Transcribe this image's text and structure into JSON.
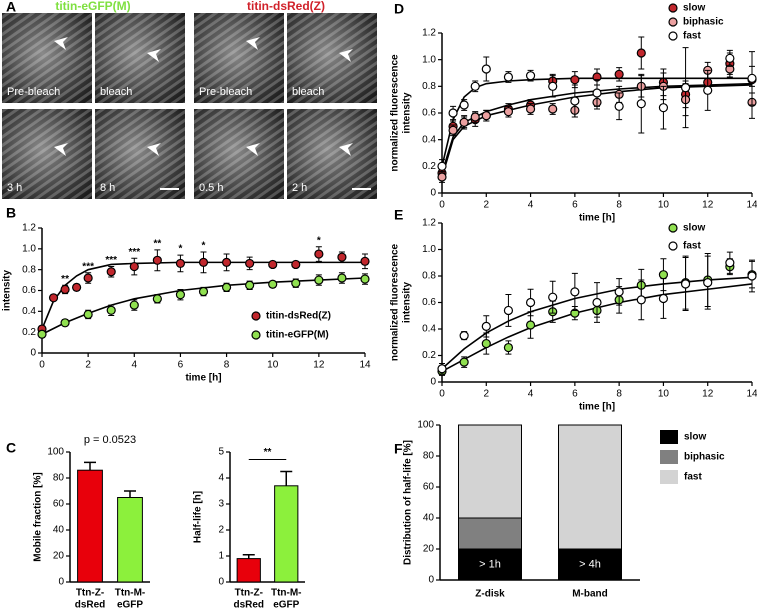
{
  "panel_labels": [
    "A",
    "B",
    "C",
    "D",
    "E",
    "F"
  ],
  "images": {
    "left_title": "titin-eGFP(M)",
    "right_title": "titin-dsRed(Z)",
    "tile_labels": [
      "Pre-bleach",
      "bleach",
      "Pre-bleach",
      "bleach",
      "3 h",
      "8 h",
      "0.5 h",
      "2 h"
    ]
  },
  "chart_data": [
    {
      "type": "scatter",
      "xlabel": "time [h]",
      "ylabel": [
        "normalized fluorescence",
        "intensity"
      ],
      "xlim": [
        0,
        14
      ],
      "xticks": [
        0,
        2,
        4,
        6,
        8,
        10,
        12,
        14
      ],
      "ylim": [
        0,
        1.2
      ],
      "yticks": [
        0,
        0.2,
        0.4,
        0.6,
        0.8,
        {
          "value": 1,
          "label": "1.0"
        },
        1.2
      ],
      "legend": "lower right",
      "series": [
        {
          "name": "titin-dsRed(Z)",
          "color": "#c1272d",
          "x": [
            0,
            0.5,
            1,
            1.5,
            2,
            3,
            4,
            5,
            6,
            7,
            8,
            9,
            10,
            11,
            12,
            13,
            14
          ],
          "values": [
            0.23,
            0.53,
            0.61,
            0.63,
            0.72,
            0.78,
            0.83,
            0.89,
            0.86,
            0.87,
            0.87,
            0.86,
            0.85,
            0.85,
            0.95,
            0.92,
            0.88
          ],
          "errors": [
            0.03,
            0.02,
            0.04,
            0.03,
            0.05,
            0.05,
            0.08,
            0.1,
            0.08,
            0.1,
            0.08,
            0.06,
            0.03,
            0.03,
            0.07,
            0.05,
            0.07
          ]
        },
        {
          "name": "titin-eGFP(M)",
          "color": "#90e050",
          "x": [
            0,
            1,
            2,
            3,
            4,
            5,
            6,
            7,
            8,
            9,
            10,
            11,
            12,
            13,
            14
          ],
          "values": [
            0.18,
            0.29,
            0.37,
            0.41,
            0.46,
            0.52,
            0.56,
            0.59,
            0.63,
            0.65,
            0.66,
            0.67,
            0.7,
            0.72,
            0.71
          ],
          "errors": [
            0.03,
            0.03,
            0.04,
            0.05,
            0.05,
            0.04,
            0.05,
            0.04,
            0.04,
            0.04,
            0.03,
            0.04,
            0.05,
            0.05,
            0.05
          ]
        },
        {
          "style": "line",
          "color": "#000000",
          "x": [
            0,
            0.5,
            1,
            1.5,
            2,
            3,
            4,
            6,
            8,
            10,
            12,
            14
          ],
          "values": [
            0.23,
            0.5,
            0.65,
            0.74,
            0.8,
            0.85,
            0.86,
            0.87,
            0.87,
            0.87,
            0.87,
            0.87
          ]
        },
        {
          "style": "line",
          "color": "#000000",
          "x": [
            0,
            1,
            2,
            3,
            4,
            6,
            8,
            10,
            12,
            14
          ],
          "values": [
            0.18,
            0.29,
            0.38,
            0.46,
            0.52,
            0.6,
            0.65,
            0.68,
            0.7,
            0.72
          ]
        }
      ],
      "annotations": [
        {
          "x": 1,
          "text": "**"
        },
        {
          "x": 2,
          "text": "***"
        },
        {
          "x": 3,
          "text": "***"
        },
        {
          "x": 4,
          "text": "***"
        },
        {
          "x": 5,
          "text": "**"
        },
        {
          "x": 6,
          "text": "*"
        },
        {
          "x": 7,
          "text": "*"
        },
        {
          "x": 12,
          "text": "*"
        }
      ]
    },
    {
      "type": "bar",
      "ylabel": "Mobile fraction [%]",
      "categories": [
        [
          "Ttn-Z-",
          "dsRed"
        ],
        [
          "Ttn-M-",
          "eGFP"
        ]
      ],
      "values": [
        86,
        65
      ],
      "errors": [
        6,
        5
      ],
      "colors": [
        "#e8000b",
        "#8cf03c"
      ],
      "ylim": [
        0,
        100
      ],
      "yticks": [
        0,
        20,
        40,
        60,
        80,
        100
      ],
      "annotation": "p = 0.0523",
      "bracket": false
    },
    {
      "type": "bar",
      "ylabel": "Half-life [h]",
      "categories": [
        [
          "Ttn-Z-",
          "dsRed"
        ],
        [
          "Ttn-M-",
          "eGFP"
        ]
      ],
      "values": [
        0.9,
        3.7
      ],
      "errors": [
        0.15,
        0.55
      ],
      "colors": [
        "#e8000b",
        "#8cf03c"
      ],
      "ylim": [
        0,
        5
      ],
      "yticks": [
        0,
        1,
        2,
        3,
        4,
        5
      ],
      "annotation": "**",
      "bracket": true
    },
    {
      "type": "scatter",
      "xlabel": "time [h]",
      "ylabel": [
        "normalized fluorescence",
        "intensity"
      ],
      "xlim": [
        0,
        14
      ],
      "xticks": [
        0,
        2,
        4,
        6,
        8,
        10,
        12,
        14
      ],
      "ylim": [
        0,
        1.2
      ],
      "yticks": [
        0,
        0.2,
        0.4,
        0.6,
        0.8,
        {
          "value": 1,
          "label": "1.0"
        },
        1.2
      ],
      "legend": "top",
      "series": [
        {
          "name": "slow",
          "color": "#c1272d",
          "x": [
            0,
            0.5,
            1,
            1.5,
            2,
            3,
            4,
            5,
            6,
            7,
            8,
            9,
            10,
            11,
            12,
            13,
            14
          ],
          "values": [
            0.15,
            0.5,
            0.53,
            0.55,
            0.58,
            0.63,
            0.66,
            0.84,
            0.85,
            0.87,
            0.89,
            1.05,
            0.83,
            0.74,
            0.83,
            0.97,
            0.85
          ],
          "errors": [
            0.05,
            0.04,
            0.05,
            0.05,
            0.04,
            0.04,
            0.04,
            0.05,
            0.06,
            0.06,
            0.05,
            0.12,
            0.1,
            0.1,
            0.08,
            0.08,
            0.1
          ]
        },
        {
          "name": "biphasic",
          "color": "#eba0a0",
          "x": [
            0,
            0.5,
            1,
            1.5,
            2,
            3,
            4,
            5,
            6,
            7,
            8,
            9,
            10,
            11,
            12,
            13,
            14
          ],
          "values": [
            0.12,
            0.47,
            0.53,
            0.57,
            0.58,
            0.61,
            0.63,
            0.63,
            0.62,
            0.68,
            0.74,
            0.8,
            0.8,
            0.7,
            0.92,
            0.93,
            0.68
          ],
          "errors": [
            0.04,
            0.04,
            0.04,
            0.04,
            0.04,
            0.04,
            0.04,
            0.04,
            0.05,
            0.05,
            0.06,
            0.08,
            0.1,
            0.12,
            0.06,
            0.06,
            0.12
          ]
        },
        {
          "name": "fast",
          "color": "#ffffff",
          "x": [
            0,
            0.5,
            1,
            1.5,
            2,
            3,
            4,
            5,
            6,
            7,
            8,
            9,
            10,
            11,
            12,
            13,
            14
          ],
          "values": [
            0.2,
            0.6,
            0.66,
            0.8,
            0.93,
            0.87,
            0.88,
            0.8,
            0.69,
            0.75,
            0.65,
            0.67,
            0.64,
            0.79,
            0.77,
            1.01,
            0.86
          ],
          "errors": [
            0.05,
            0.05,
            0.04,
            0.04,
            0.09,
            0.04,
            0.04,
            0.08,
            0.12,
            0.1,
            0.1,
            0.22,
            0.16,
            0.3,
            0.15,
            0.06,
            0.2
          ]
        },
        {
          "style": "line",
          "color": "#000000",
          "x": [
            0,
            0.5,
            1,
            2,
            3,
            4,
            6,
            8,
            10,
            12,
            14
          ],
          "values": [
            0.15,
            0.42,
            0.53,
            0.61,
            0.66,
            0.7,
            0.75,
            0.78,
            0.8,
            0.81,
            0.82
          ]
        },
        {
          "style": "line",
          "color": "#000000",
          "x": [
            0,
            0.5,
            1,
            2,
            4,
            6,
            8,
            10,
            12,
            14
          ],
          "values": [
            0.12,
            0.4,
            0.5,
            0.58,
            0.66,
            0.72,
            0.76,
            0.79,
            0.8,
            0.81
          ]
        },
        {
          "style": "line",
          "color": "#000000",
          "x": [
            0,
            0.5,
            1,
            1.5,
            2,
            3,
            4,
            6,
            10,
            14
          ],
          "values": [
            0.2,
            0.55,
            0.72,
            0.79,
            0.82,
            0.84,
            0.85,
            0.86,
            0.86,
            0.86
          ]
        }
      ]
    },
    {
      "type": "scatter",
      "xlabel": "time [h]",
      "ylabel": [
        "normalized fluorescence",
        "intensity"
      ],
      "xlim": [
        0,
        14
      ],
      "xticks": [
        0,
        2,
        4,
        6,
        8,
        10,
        12,
        14
      ],
      "ylim": [
        0,
        1.2
      ],
      "yticks": [
        0,
        0.2,
        0.4,
        0.6,
        0.8,
        {
          "value": 1,
          "label": "1.0"
        },
        1.2
      ],
      "legend": "upper right",
      "series": [
        {
          "name": "slow",
          "color": "#90e050",
          "x": [
            0,
            1,
            2,
            3,
            4,
            5,
            6,
            7,
            8,
            9,
            10,
            11,
            12,
            13,
            14
          ],
          "values": [
            0.08,
            0.15,
            0.29,
            0.26,
            0.43,
            0.53,
            0.52,
            0.54,
            0.62,
            0.73,
            0.81,
            0.75,
            0.77,
            0.87,
            0.81
          ],
          "errors": [
            0.03,
            0.04,
            0.08,
            0.05,
            0.1,
            0.08,
            0.05,
            0.05,
            0.1,
            0.12,
            0.12,
            0.2,
            0.2,
            0.06,
            0.1
          ]
        },
        {
          "name": "fast",
          "color": "#ffffff",
          "x": [
            0,
            1,
            2,
            3,
            4,
            5,
            6,
            7,
            8,
            9,
            10,
            11,
            12,
            13,
            14
          ],
          "values": [
            0.1,
            0.35,
            0.42,
            0.54,
            0.6,
            0.64,
            0.68,
            0.6,
            0.68,
            0.62,
            0.63,
            0.74,
            0.75,
            0.9,
            0.8
          ],
          "errors": [
            0.04,
            0.03,
            0.08,
            0.12,
            0.1,
            0.12,
            0.14,
            0.15,
            0.1,
            0.15,
            0.15,
            0.2,
            0.2,
            0.08,
            0.12
          ]
        },
        {
          "style": "line",
          "color": "#000000",
          "x": [
            0,
            1,
            2,
            3,
            4,
            6,
            8,
            10,
            12,
            14
          ],
          "values": [
            0.08,
            0.17,
            0.26,
            0.34,
            0.41,
            0.52,
            0.6,
            0.66,
            0.7,
            0.74
          ]
        },
        {
          "style": "line",
          "color": "#000000",
          "x": [
            0,
            1,
            2,
            3,
            4,
            6,
            8,
            10,
            12,
            14
          ],
          "values": [
            0.1,
            0.25,
            0.37,
            0.46,
            0.53,
            0.63,
            0.7,
            0.74,
            0.77,
            0.79
          ]
        }
      ]
    },
    {
      "type": "stacked_bar",
      "ylabel": "Distribution of half-life [%]",
      "categories": [
        "Z-disk",
        "M-band"
      ],
      "ylim": [
        0,
        100
      ],
      "yticks": [
        0,
        20,
        40,
        60,
        80,
        100
      ],
      "legend": "right",
      "series": [
        {
          "name": "slow",
          "color": "#000000",
          "values": [
            20,
            20
          ]
        },
        {
          "name": "biphasic",
          "color": "#808080",
          "values": [
            20,
            0
          ]
        },
        {
          "name": "fast",
          "color": "#d3d3d3",
          "values": [
            60,
            80
          ]
        }
      ],
      "bar_annotations": [
        "> 1h",
        "> 4h"
      ]
    }
  ]
}
